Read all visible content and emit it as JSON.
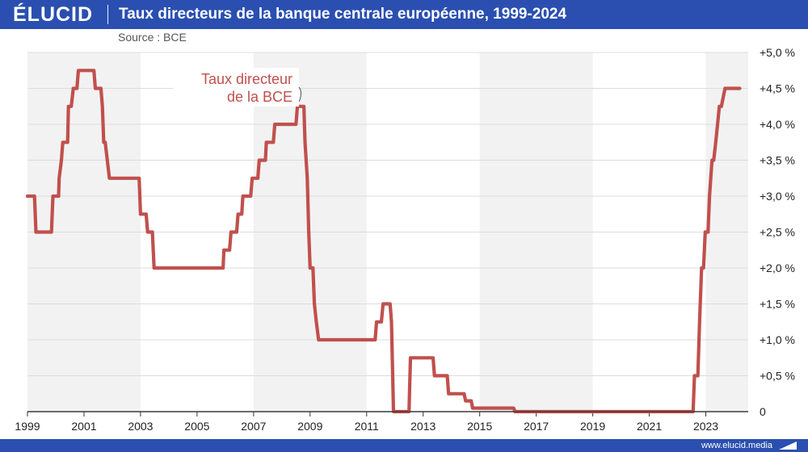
{
  "header": {
    "logo": "ÉLUCID",
    "title": "Taux directeurs de la banque centrale européenne, 1999-2024"
  },
  "source": "Source : BCE",
  "footer": {
    "site": "www.elucid.media"
  },
  "colors": {
    "brand": "#2a4fb0",
    "series": "#c0504d",
    "band": "#f2f2f2",
    "grid": "#dcdcdc"
  },
  "chart_data": {
    "type": "line",
    "title": "Taux directeurs de la banque centrale européenne, 1999-2024",
    "xlabel": "",
    "ylabel": "",
    "xlim": [
      1999,
      2024.5
    ],
    "ylim": [
      0,
      5
    ],
    "x_ticks": [
      {
        "value": 1999,
        "label": "1999"
      },
      {
        "value": 2001,
        "label": "2001"
      },
      {
        "value": 2003,
        "label": "2003"
      },
      {
        "value": 2005,
        "label": "2005"
      },
      {
        "value": 2007,
        "label": "2007"
      },
      {
        "value": 2009,
        "label": "2009"
      },
      {
        "value": 2011,
        "label": "2011"
      },
      {
        "value": 2013,
        "label": "2013"
      },
      {
        "value": 2015,
        "label": "2015"
      },
      {
        "value": 2017,
        "label": "2017"
      },
      {
        "value": 2019,
        "label": "2019"
      },
      {
        "value": 2021,
        "label": "2021"
      },
      {
        "value": 2023,
        "label": "2023"
      }
    ],
    "y_ticks": [
      {
        "value": 0,
        "label": "0"
      },
      {
        "value": 0.5,
        "label": "+0,5 %"
      },
      {
        "value": 1,
        "label": "+1,0 %"
      },
      {
        "value": 1.5,
        "label": "+1,5 %"
      },
      {
        "value": 2,
        "label": "+2,0 %"
      },
      {
        "value": 2.5,
        "label": "+2,5 %"
      },
      {
        "value": 3,
        "label": "+3,0 %"
      },
      {
        "value": 3.5,
        "label": "+3,5 %"
      },
      {
        "value": 4,
        "label": "+4,0 %"
      },
      {
        "value": 4.5,
        "label": "+4,5 %"
      },
      {
        "value": 5,
        "label": "+5,0 %"
      }
    ],
    "y_axis_position": "right",
    "grid": "horizontal",
    "alternating_bands": [
      [
        1999,
        2003
      ],
      [
        2007,
        2011
      ],
      [
        2015,
        2019
      ],
      [
        2023,
        2024.5
      ]
    ],
    "annotation": {
      "lines": [
        "Taux directeur",
        "de la BCE"
      ],
      "x": 2008.7,
      "y": 4.25
    },
    "series": [
      {
        "name": "Taux directeur de la BCE",
        "points": [
          [
            1999.0,
            3.0
          ],
          [
            1999.25,
            3.0
          ],
          [
            1999.3,
            2.5
          ],
          [
            1999.85,
            2.5
          ],
          [
            1999.9,
            3.0
          ],
          [
            2000.1,
            3.0
          ],
          [
            2000.12,
            3.25
          ],
          [
            2000.2,
            3.5
          ],
          [
            2000.25,
            3.75
          ],
          [
            2000.42,
            3.75
          ],
          [
            2000.45,
            4.25
          ],
          [
            2000.55,
            4.25
          ],
          [
            2000.62,
            4.5
          ],
          [
            2000.75,
            4.5
          ],
          [
            2000.8,
            4.75
          ],
          [
            2001.35,
            4.75
          ],
          [
            2001.4,
            4.5
          ],
          [
            2001.6,
            4.5
          ],
          [
            2001.65,
            4.25
          ],
          [
            2001.7,
            3.75
          ],
          [
            2001.75,
            3.75
          ],
          [
            2001.9,
            3.25
          ],
          [
            2002.95,
            3.25
          ],
          [
            2003.0,
            2.75
          ],
          [
            2003.2,
            2.75
          ],
          [
            2003.25,
            2.5
          ],
          [
            2003.42,
            2.5
          ],
          [
            2003.48,
            2.0
          ],
          [
            2005.92,
            2.0
          ],
          [
            2005.95,
            2.25
          ],
          [
            2006.15,
            2.25
          ],
          [
            2006.2,
            2.5
          ],
          [
            2006.4,
            2.5
          ],
          [
            2006.45,
            2.75
          ],
          [
            2006.58,
            2.75
          ],
          [
            2006.62,
            3.0
          ],
          [
            2006.9,
            3.0
          ],
          [
            2006.95,
            3.25
          ],
          [
            2007.15,
            3.25
          ],
          [
            2007.2,
            3.5
          ],
          [
            2007.42,
            3.5
          ],
          [
            2007.45,
            3.75
          ],
          [
            2007.7,
            3.75
          ],
          [
            2007.75,
            4.0
          ],
          [
            2008.5,
            4.0
          ],
          [
            2008.55,
            4.25
          ],
          [
            2008.78,
            4.25
          ],
          [
            2008.82,
            3.75
          ],
          [
            2008.9,
            3.25
          ],
          [
            2008.95,
            2.5
          ],
          [
            2009.0,
            2.0
          ],
          [
            2009.1,
            2.0
          ],
          [
            2009.15,
            1.5
          ],
          [
            2009.22,
            1.25
          ],
          [
            2009.3,
            1.0
          ],
          [
            2011.3,
            1.0
          ],
          [
            2011.35,
            1.25
          ],
          [
            2011.52,
            1.25
          ],
          [
            2011.58,
            1.5
          ],
          [
            2011.83,
            1.5
          ],
          [
            2011.88,
            1.25
          ],
          [
            2011.95,
            0.0
          ],
          [
            2012.5,
            0.0
          ],
          [
            2012.55,
            0.75
          ],
          [
            2013.35,
            0.75
          ],
          [
            2013.4,
            0.5
          ],
          [
            2013.85,
            0.5
          ],
          [
            2013.9,
            0.25
          ],
          [
            2014.45,
            0.25
          ],
          [
            2014.5,
            0.15
          ],
          [
            2014.7,
            0.15
          ],
          [
            2014.75,
            0.05
          ],
          [
            2016.2,
            0.05
          ],
          [
            2016.25,
            0.0
          ],
          [
            2022.55,
            0.0
          ],
          [
            2022.6,
            0.5
          ],
          [
            2022.72,
            0.5
          ],
          [
            2022.78,
            1.25
          ],
          [
            2022.85,
            2.0
          ],
          [
            2022.92,
            2.0
          ],
          [
            2022.98,
            2.5
          ],
          [
            2023.08,
            2.5
          ],
          [
            2023.13,
            3.0
          ],
          [
            2023.22,
            3.5
          ],
          [
            2023.28,
            3.5
          ],
          [
            2023.35,
            3.75
          ],
          [
            2023.48,
            4.25
          ],
          [
            2023.55,
            4.25
          ],
          [
            2023.68,
            4.5
          ],
          [
            2024.2,
            4.5
          ]
        ]
      }
    ]
  }
}
